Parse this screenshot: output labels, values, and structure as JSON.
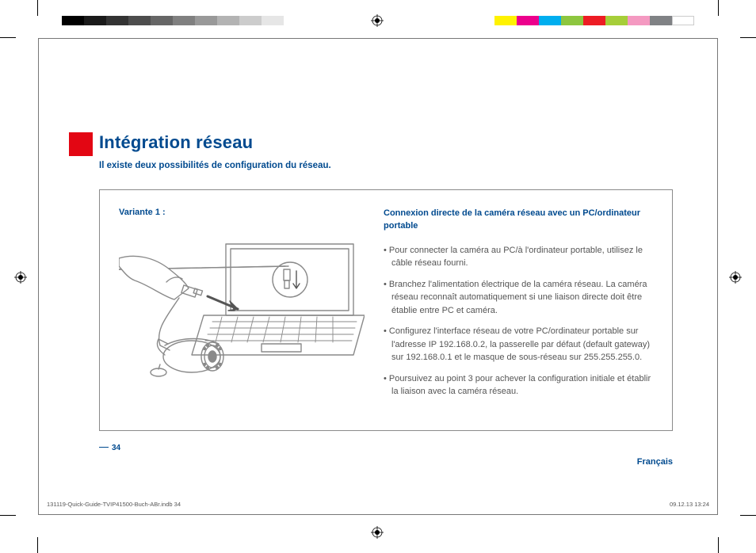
{
  "title": "Intégration réseau",
  "subtitle": "Il existe deux possibilités de configuration du réseau.",
  "variant_label": "Variante 1 :",
  "conn_title": "Connexion directe de la caméra réseau avec un PC/ordinateur portable",
  "bullets": [
    "Pour connecter la caméra au PC/à l'ordinateur portable, utilisez le câble réseau fourni.",
    "Branchez l'alimentation électrique de la caméra réseau. La caméra réseau reconnaît automatiquement si une liaison directe doit être établie entre PC et caméra.",
    "Configurez l'interface réseau de votre PC/ordinateur portable sur l'adresse IP 192.168.0.2, la passerelle par défaut (default gateway) sur 192.168.0.1 et le masque de sous-réseau sur 255.255.255.0.",
    "Poursuivez au point 3 pour achever la configuration initiale et établir la liaison avec la caméra réseau."
  ],
  "page_number": "34",
  "language": "Français",
  "footer_left": "131119-Quick-Guide-TVIP41500-Buch-ABr.indb   34",
  "footer_right": "09.12.13   13:24",
  "colors": {
    "brand_blue": "#004a8f",
    "red": "#e30613",
    "text_grey": "#555555",
    "rule_grey": "#8a8a8a"
  },
  "colorbar_left": [
    {
      "c": "#000000",
      "w": 28
    },
    {
      "c": "#1a1a1a",
      "w": 28
    },
    {
      "c": "#333333",
      "w": 28
    },
    {
      "c": "#4d4d4d",
      "w": 28
    },
    {
      "c": "#666666",
      "w": 28
    },
    {
      "c": "#808080",
      "w": 28
    },
    {
      "c": "#999999",
      "w": 28
    },
    {
      "c": "#b3b3b3",
      "w": 28
    },
    {
      "c": "#cccccc",
      "w": 28
    },
    {
      "c": "#e6e6e6",
      "w": 28
    }
  ],
  "colorbar_right": [
    {
      "c": "#fff200",
      "w": 28
    },
    {
      "c": "#ec008c",
      "w": 28
    },
    {
      "c": "#00aeef",
      "w": 28
    },
    {
      "c": "#8dc63f",
      "w": 28
    },
    {
      "c": "#ed1c24",
      "w": 28
    },
    {
      "c": "#a6ce39",
      "w": 28
    },
    {
      "c": "#f499c1",
      "w": 28
    },
    {
      "c": "#808285",
      "w": 28
    },
    {
      "c": "#ffffff",
      "w": 28
    }
  ]
}
